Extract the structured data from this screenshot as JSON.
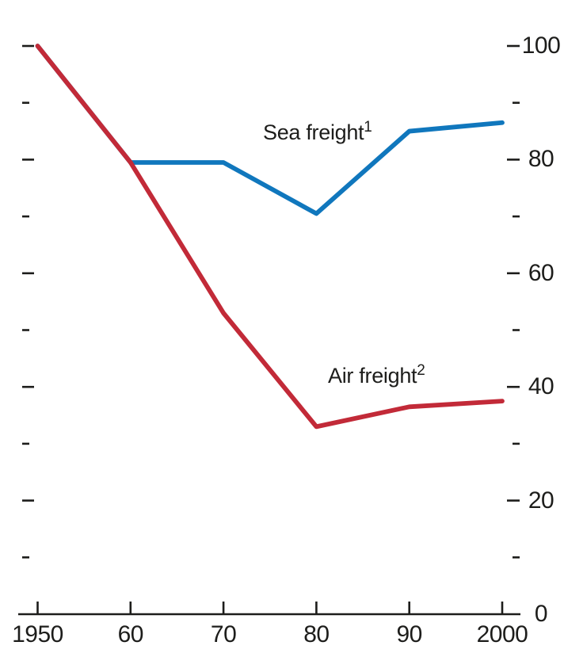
{
  "chart_data": {
    "type": "line",
    "x": [
      1950,
      1960,
      1970,
      1980,
      1990,
      2000
    ],
    "x_tick_labels": [
      "1950",
      "60",
      "70",
      "80",
      "90",
      "2000"
    ],
    "xlim": [
      1950,
      2000
    ],
    "ylim": [
      0,
      100
    ],
    "y_major_ticks": [
      0,
      20,
      40,
      60,
      80,
      100
    ],
    "y_major_tick_labels": [
      "0",
      "20",
      "40",
      "60",
      "80",
      "100"
    ],
    "y_minor_ticks": [
      10,
      30,
      50,
      70,
      90
    ],
    "y_labels_side": "right",
    "grid": false,
    "legend_position": "inline-labels-on-plot",
    "axis_color": "#1d1d1b",
    "series": [
      {
        "name": "Sea freight",
        "footnote_marker": "1",
        "color": "#1077bd",
        "values": [
          100,
          79.5,
          79.5,
          70.5,
          85,
          86.5
        ]
      },
      {
        "name": "Air freight",
        "footnote_marker": "2",
        "color": "#c22a38",
        "values": [
          100,
          79.5,
          53,
          33,
          36.5,
          37.5
        ]
      }
    ]
  }
}
